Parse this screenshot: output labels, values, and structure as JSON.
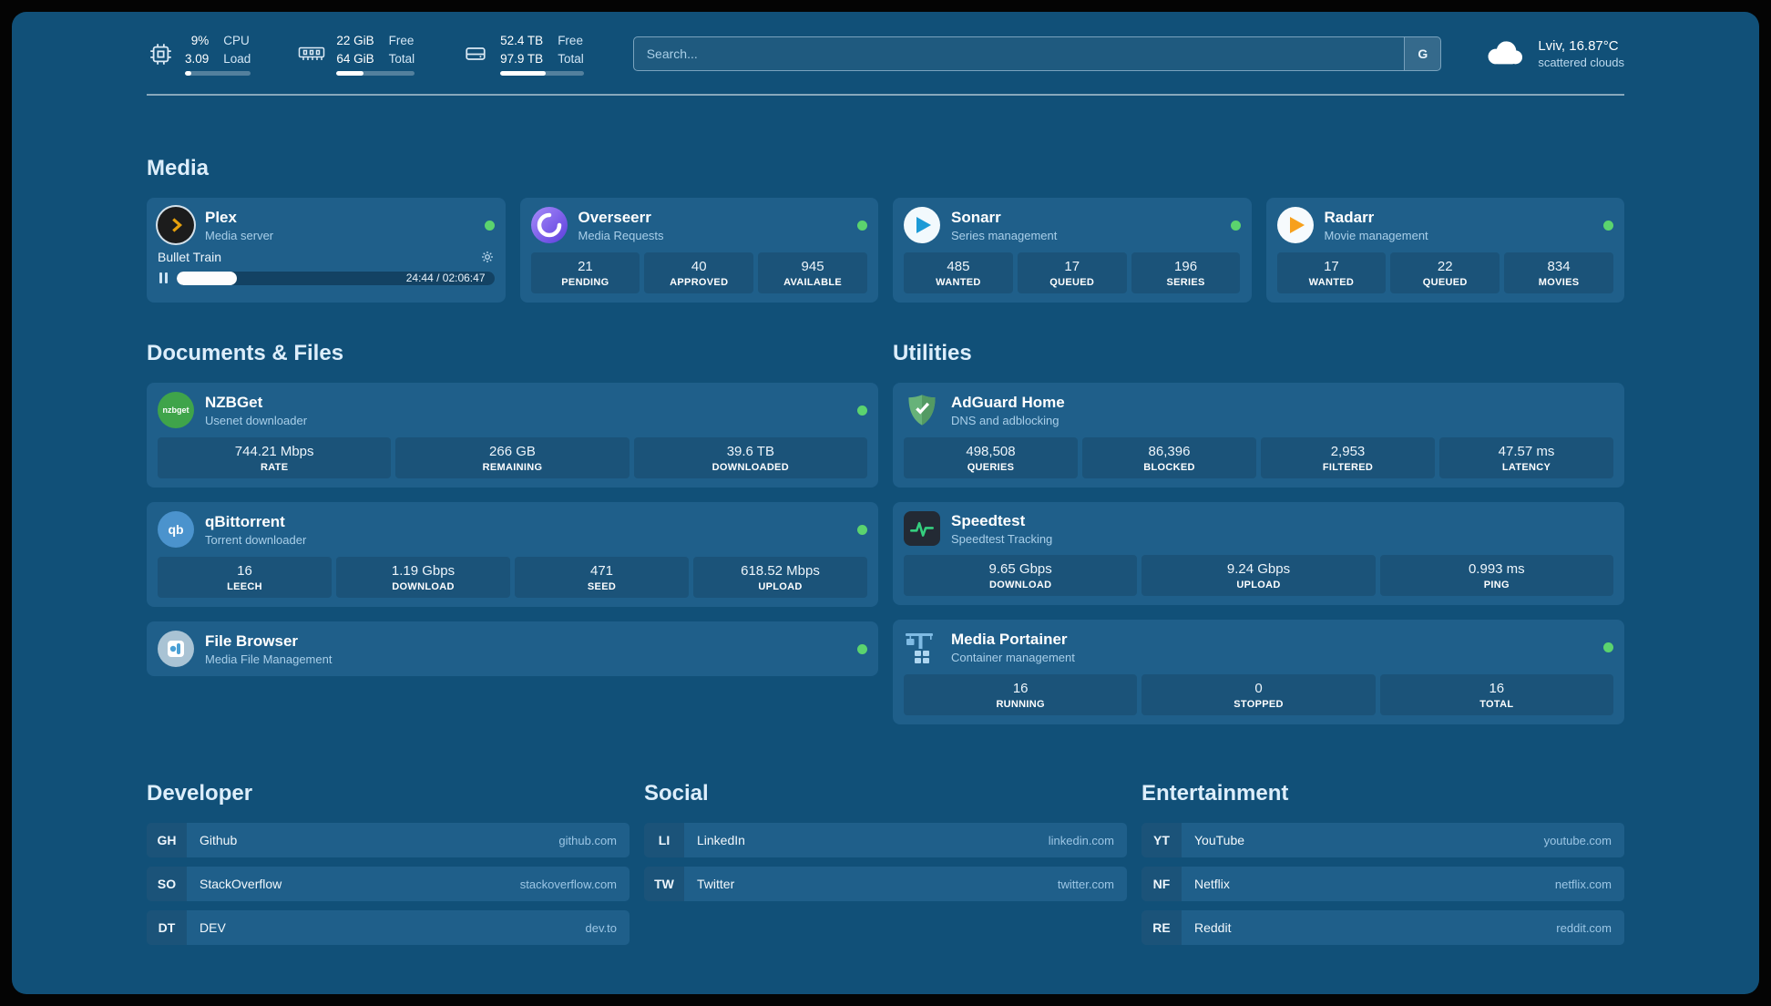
{
  "colors": {
    "background": "#115078",
    "card": "#1f5f8a",
    "status_online": "#5bd36e",
    "title_text": "#ddeefb",
    "subtitle_text": "#a9cfe9",
    "url_text": "#9cc6e5"
  },
  "topbar": {
    "cpu": {
      "value_top": "9%",
      "value_bottom": "3.09",
      "label_top": "CPU",
      "label_bottom": "Load",
      "bar_percent": 9
    },
    "memory": {
      "value_top": "22 GiB",
      "value_bottom": "64 GiB",
      "label_top": "Free",
      "label_bottom": "Total",
      "bar_percent": 34
    },
    "disk": {
      "value_top": "52.4 TB",
      "value_bottom": "97.9 TB",
      "label_top": "Free",
      "label_bottom": "Total",
      "bar_percent": 54
    },
    "search": {
      "placeholder": "Search...",
      "engine_button": "G"
    },
    "weather": {
      "location": "Lviv, 16.87°C",
      "condition": "scattered clouds"
    }
  },
  "sections": {
    "media": "Media",
    "documents": "Documents & Files",
    "utilities": "Utilities",
    "developer": "Developer",
    "social": "Social",
    "entertainment": "Entertainment"
  },
  "plex": {
    "name": "Plex",
    "subtitle": "Media server",
    "now_playing": "Bullet Train",
    "time": "24:44 / 02:06:47",
    "progress_percent": 19
  },
  "overseerr": {
    "name": "Overseerr",
    "subtitle": "Media Requests",
    "stats": [
      {
        "value": "21",
        "label": "PENDING"
      },
      {
        "value": "40",
        "label": "APPROVED"
      },
      {
        "value": "945",
        "label": "AVAILABLE"
      }
    ]
  },
  "sonarr": {
    "name": "Sonarr",
    "subtitle": "Series management",
    "stats": [
      {
        "value": "485",
        "label": "WANTED"
      },
      {
        "value": "17",
        "label": "QUEUED"
      },
      {
        "value": "196",
        "label": "SERIES"
      }
    ]
  },
  "radarr": {
    "name": "Radarr",
    "subtitle": "Movie management",
    "stats": [
      {
        "value": "17",
        "label": "WANTED"
      },
      {
        "value": "22",
        "label": "QUEUED"
      },
      {
        "value": "834",
        "label": "MOVIES"
      }
    ]
  },
  "nzbget": {
    "name": "NZBGet",
    "subtitle": "Usenet downloader",
    "icon_text": "nzbget",
    "stats": [
      {
        "value": "744.21 Mbps",
        "label": "RATE"
      },
      {
        "value": "266 GB",
        "label": "REMAINING"
      },
      {
        "value": "39.6 TB",
        "label": "DOWNLOADED"
      }
    ]
  },
  "qbittorrent": {
    "name": "qBittorrent",
    "subtitle": "Torrent downloader",
    "icon_text": "qb",
    "stats": [
      {
        "value": "16",
        "label": "LEECH"
      },
      {
        "value": "1.19 Gbps",
        "label": "DOWNLOAD"
      },
      {
        "value": "471",
        "label": "SEED"
      },
      {
        "value": "618.52 Mbps",
        "label": "UPLOAD"
      }
    ]
  },
  "filebrowser": {
    "name": "File Browser",
    "subtitle": "Media File Management"
  },
  "adguard": {
    "name": "AdGuard Home",
    "subtitle": "DNS and adblocking",
    "stats": [
      {
        "value": "498,508",
        "label": "QUERIES"
      },
      {
        "value": "86,396",
        "label": "BLOCKED"
      },
      {
        "value": "2,953",
        "label": "FILTERED"
      },
      {
        "value": "47.57 ms",
        "label": "LATENCY"
      }
    ]
  },
  "speedtest": {
    "name": "Speedtest",
    "subtitle": "Speedtest Tracking",
    "stats": [
      {
        "value": "9.65 Gbps",
        "label": "DOWNLOAD"
      },
      {
        "value": "9.24 Gbps",
        "label": "UPLOAD"
      },
      {
        "value": "0.993 ms",
        "label": "PING"
      }
    ]
  },
  "portainer": {
    "name": "Media Portainer",
    "subtitle": "Container management",
    "stats": [
      {
        "value": "16",
        "label": "RUNNING"
      },
      {
        "value": "0",
        "label": "STOPPED"
      },
      {
        "value": "16",
        "label": "TOTAL"
      }
    ]
  },
  "bookmarks": {
    "developer": [
      {
        "abbr": "GH",
        "name": "Github",
        "url": "github.com"
      },
      {
        "abbr": "SO",
        "name": "StackOverflow",
        "url": "stackoverflow.com"
      },
      {
        "abbr": "DT",
        "name": "DEV",
        "url": "dev.to"
      }
    ],
    "social": [
      {
        "abbr": "LI",
        "name": "LinkedIn",
        "url": "linkedin.com"
      },
      {
        "abbr": "TW",
        "name": "Twitter",
        "url": "twitter.com"
      }
    ],
    "entertainment": [
      {
        "abbr": "YT",
        "name": "YouTube",
        "url": "youtube.com"
      },
      {
        "abbr": "NF",
        "name": "Netflix",
        "url": "netflix.com"
      },
      {
        "abbr": "RE",
        "name": "Reddit",
        "url": "reddit.com"
      }
    ]
  }
}
